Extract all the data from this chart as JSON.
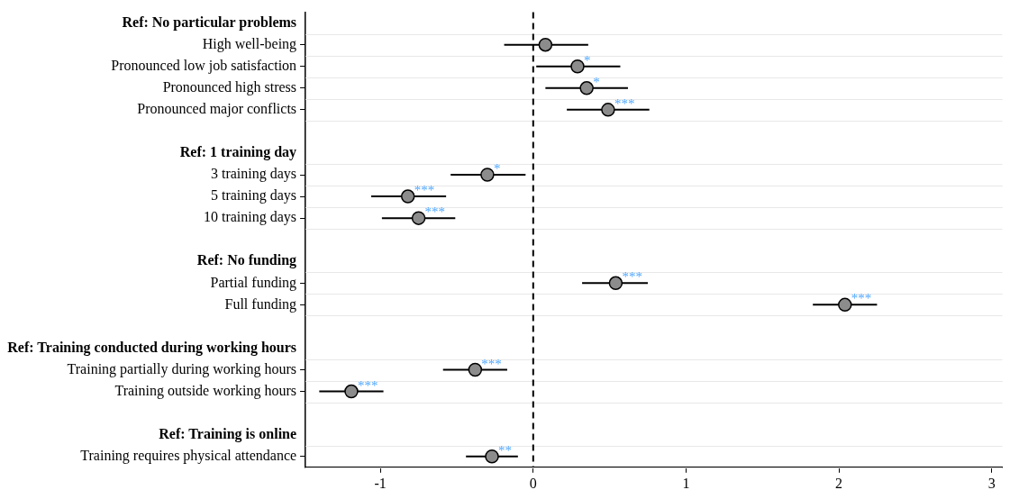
{
  "chart_data": {
    "type": "scatter",
    "orientation": "horizontal",
    "categories": [
      "Ref: No particular problems",
      "High well-being",
      "Pronounced low job satisfaction",
      "Pronounced high stress",
      "Pronounced major conflicts",
      null,
      "Ref: 1 training day",
      "3 training days",
      "5 training days",
      "10 training days",
      null,
      "Ref: No funding",
      "Partial funding",
      "Full funding",
      null,
      "Ref: Training conducted during working hours",
      "Training partially during working hours",
      "Training outside working hours",
      null,
      "Ref: Training is online",
      "Training requires physical attendance"
    ],
    "values": [
      null,
      0.08,
      0.29,
      0.35,
      0.49,
      null,
      null,
      -0.3,
      -0.82,
      -0.75,
      null,
      null,
      0.54,
      2.04,
      null,
      null,
      -0.38,
      -1.19,
      null,
      null,
      -0.27
    ],
    "errors": [
      null,
      [
        -0.19,
        0.36
      ],
      [
        0.02,
        0.57
      ],
      [
        0.08,
        0.62
      ],
      [
        0.22,
        0.76
      ],
      null,
      null,
      [
        -0.54,
        -0.05
      ],
      [
        -1.06,
        -0.57
      ],
      [
        -0.99,
        -0.51
      ],
      null,
      null,
      [
        0.32,
        0.75
      ],
      [
        1.83,
        2.25
      ],
      null,
      null,
      [
        -0.59,
        -0.17
      ],
      [
        -1.4,
        -0.98
      ],
      null,
      null,
      [
        -0.44,
        -0.1
      ]
    ],
    "value_labels": [
      null,
      null,
      "*",
      "*",
      "***",
      null,
      null,
      "*",
      "***",
      "***",
      null,
      null,
      "***",
      "***",
      null,
      null,
      "***",
      "***",
      null,
      null,
      "**"
    ],
    "color": "#8c8c8c",
    "marker": "circle",
    "grid": "y",
    "legend": false,
    "xlim": [
      -1.49,
      3.07
    ],
    "xticks": [
      -1,
      0,
      1,
      2,
      3
    ],
    "ref_lines": [
      {
        "axis": "x",
        "value": 0,
        "line_style": "dashed",
        "color": "#000000"
      }
    ]
  }
}
